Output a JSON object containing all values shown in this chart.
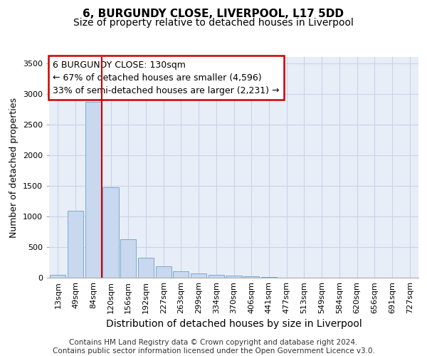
{
  "title1": "6, BURGUNDY CLOSE, LIVERPOOL, L17 5DD",
  "title2": "Size of property relative to detached houses in Liverpool",
  "xlabel": "Distribution of detached houses by size in Liverpool",
  "ylabel": "Number of detached properties",
  "bar_labels": [
    "13sqm",
    "49sqm",
    "84sqm",
    "120sqm",
    "156sqm",
    "192sqm",
    "227sqm",
    "263sqm",
    "299sqm",
    "334sqm",
    "370sqm",
    "406sqm",
    "441sqm",
    "477sqm",
    "513sqm",
    "549sqm",
    "584sqm",
    "620sqm",
    "656sqm",
    "691sqm",
    "727sqm"
  ],
  "bar_values": [
    50,
    1090,
    2870,
    1480,
    630,
    330,
    190,
    100,
    65,
    50,
    35,
    20,
    10,
    5,
    2,
    1,
    0,
    0,
    0,
    0,
    0
  ],
  "bar_color": "#c8d8ee",
  "bar_edgecolor": "#7aaad0",
  "grid_color": "#c8d4e8",
  "background_color": "#e8eef8",
  "vline_color": "#cc0000",
  "vline_position": 3.0,
  "annotation_text": "6 BURGUNDY CLOSE: 130sqm\n← 67% of detached houses are smaller (4,596)\n33% of semi-detached houses are larger (2,231) →",
  "annotation_box_edgecolor": "#cc0000",
  "ylim": [
    0,
    3600
  ],
  "yticks": [
    0,
    500,
    1000,
    1500,
    2000,
    2500,
    3000,
    3500
  ],
  "footer_text": "Contains HM Land Registry data © Crown copyright and database right 2024.\nContains public sector information licensed under the Open Government Licence v3.0.",
  "title1_fontsize": 11,
  "title2_fontsize": 10,
  "xlabel_fontsize": 10,
  "ylabel_fontsize": 9,
  "tick_fontsize": 8,
  "annotation_fontsize": 9,
  "footer_fontsize": 7.5
}
